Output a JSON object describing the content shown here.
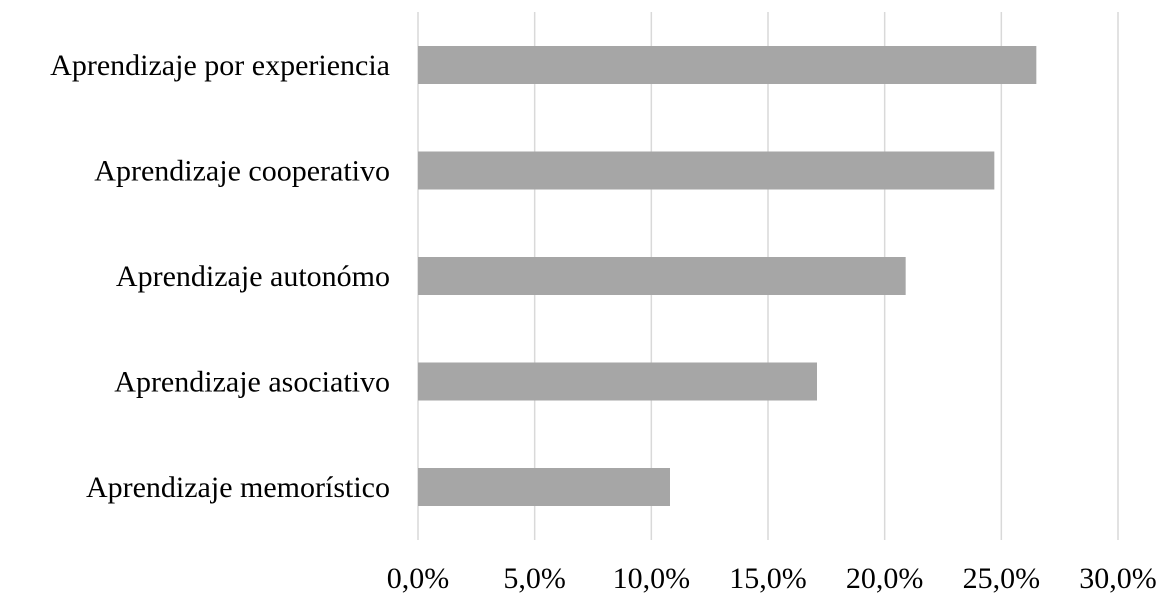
{
  "chart_data": {
    "type": "bar",
    "orientation": "horizontal",
    "title": "",
    "xlabel": "",
    "ylabel": "",
    "categories": [
      "Aprendizaje por experiencia",
      "Aprendizaje cooperativo",
      "Aprendizaje autonómo",
      "Aprendizaje asociativo",
      "Aprendizaje memorístico"
    ],
    "values": [
      26.5,
      24.7,
      20.9,
      17.1,
      10.8
    ],
    "value_unit": "%",
    "xlim": [
      0,
      30
    ],
    "x_ticks": [
      0,
      5,
      10,
      15,
      20,
      25,
      30
    ],
    "x_tick_labels": [
      "0,0%",
      "5,0%",
      "10,0%",
      "15,0%",
      "20,0%",
      "25,0%",
      "30,0%"
    ],
    "grid": "vertical",
    "legend": "none",
    "bar_color": "#a6a6a6",
    "grid_color": "#d9d9d9"
  }
}
